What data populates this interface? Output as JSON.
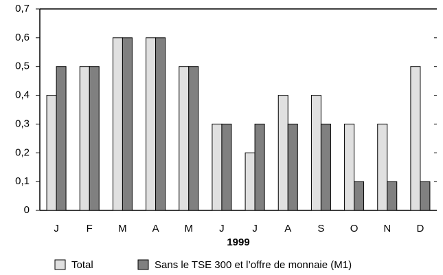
{
  "chart_data": {
    "type": "bar",
    "xlabel": "1999",
    "categories": [
      "J",
      "F",
      "M",
      "A",
      "M",
      "J",
      "J",
      "A",
      "S",
      "O",
      "N",
      "D"
    ],
    "series": [
      {
        "name": "Total",
        "color": "#e0e0e0",
        "values": [
          0.4,
          0.5,
          0.6,
          0.6,
          0.5,
          0.3,
          0.2,
          0.4,
          0.4,
          0.3,
          0.3,
          0.5
        ]
      },
      {
        "name": "Sans le TSE 300 et l’offre de monnaie (M1)",
        "color": "#808080",
        "values": [
          0.5,
          0.5,
          0.6,
          0.6,
          0.5,
          0.3,
          0.3,
          0.3,
          0.3,
          0.1,
          0.1,
          0.1
        ]
      }
    ],
    "ylim": [
      0,
      0.7
    ],
    "yticks": [
      0,
      {
        "value": 0.1,
        "label": "0,1"
      },
      {
        "value": 0.2,
        "label": "0,2"
      },
      {
        "value": 0.3,
        "label": "0,3"
      },
      {
        "value": 0.4,
        "label": "0,4"
      },
      {
        "value": 0.5,
        "label": "0,5"
      },
      {
        "value": 0.6,
        "label": "0,6"
      },
      {
        "value": 0.7,
        "label": "0,7"
      }
    ],
    "legend": "bottom"
  }
}
